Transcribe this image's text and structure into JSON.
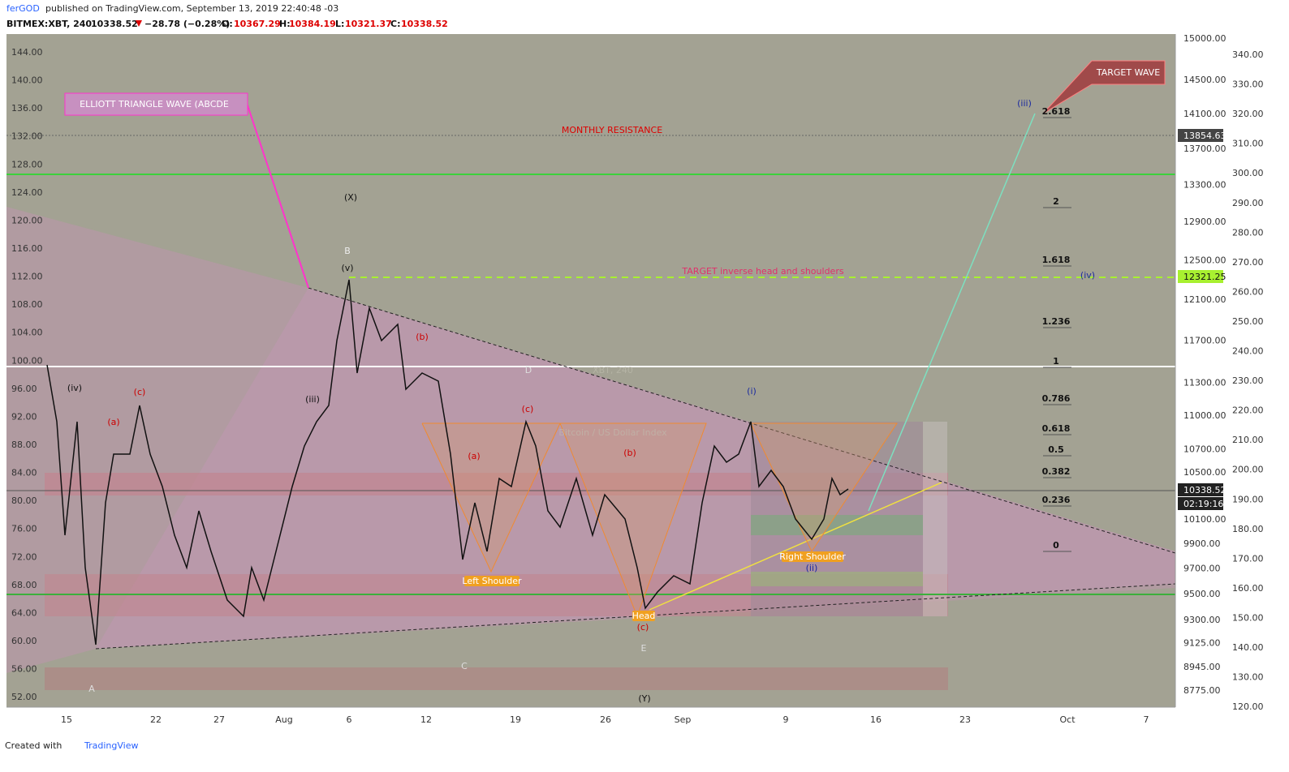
{
  "header": {
    "author": "ferGOD",
    "published": "published on TradingView.com, September 13, 2019 22:40:48 -03",
    "symbol": "BITMEX:XBT, 240",
    "last": "10338.52",
    "change": "−28.78 (−0.28%)",
    "o_label": "O:",
    "o": "10367.29",
    "h_label": "H:",
    "h": "10384.19",
    "l_label": "L:",
    "l": "10321.37",
    "c_label": "C:",
    "c": "10338.52"
  },
  "left_axis": [
    "144.00",
    "140.00",
    "136.00",
    "132.00",
    "128.00",
    "124.00",
    "120.00",
    "116.00",
    "112.00",
    "108.00",
    "104.00",
    "100.00",
    "96.00",
    "92.00",
    "88.00",
    "84.00",
    "80.00",
    "76.00",
    "72.00",
    "68.00",
    "64.00",
    "60.00",
    "56.00",
    "52.00"
  ],
  "price_axis": [
    "15000.00",
    "14500.00",
    "14100.00",
    "13700.00",
    "13300.00",
    "12900.00",
    "12500.00",
    "12100.00",
    "11700.00",
    "11300.00",
    "11000.00",
    "10700.00",
    "10500.00",
    "10100.00",
    "9900.00",
    "9700.00",
    "9500.00",
    "9300.00",
    "9125.00",
    "8945.00",
    "8775.00"
  ],
  "index_axis": [
    "340.00",
    "330.00",
    "320.00",
    "310.00",
    "300.00",
    "290.00",
    "280.00",
    "270.00",
    "260.00",
    "250.00",
    "240.00",
    "230.00",
    "220.00",
    "210.00",
    "200.00",
    "190.00",
    "180.00",
    "170.00",
    "160.00",
    "150.00",
    "140.00",
    "130.00",
    "120.00"
  ],
  "time_axis": [
    "15",
    "22",
    "27",
    "Aug",
    "6",
    "12",
    "19",
    "26",
    "Sep",
    "9",
    "16",
    "23",
    "Oct",
    "7"
  ],
  "price_tags": [
    "13854.63",
    "12321.25",
    "10338.52",
    "02:19:16"
  ],
  "watermark": {
    "symbol": "XBT, 240",
    "name": "Bitcoin / US Dollar Index"
  },
  "annotations": [
    "(X)",
    "B",
    "(v)",
    "D",
    "(Y)",
    "E",
    "C",
    "A",
    "ELLIOTT TRIANGLE WAVE (ABCDE",
    "TARGET WAVE",
    "MONTHLY RESISTANCE",
    "TARGET inverse head and shoulders",
    "(iii)",
    "(iv)",
    "(i)",
    "(ii)",
    "Left Shoulder",
    "Head",
    "Right Shoulder",
    "(iv)",
    "(iii)",
    "(c)",
    "(b)",
    "(a)",
    "(c)",
    "(b)",
    "(a)",
    "(c)"
  ],
  "fib_levels": [
    "2.618",
    "2",
    "1.618",
    "1.236",
    "1",
    "0.786",
    "0.618",
    "0.5",
    "0.382",
    "0.236",
    "0"
  ],
  "footer": {
    "created": "Created with",
    "brand": "TradingView"
  }
}
